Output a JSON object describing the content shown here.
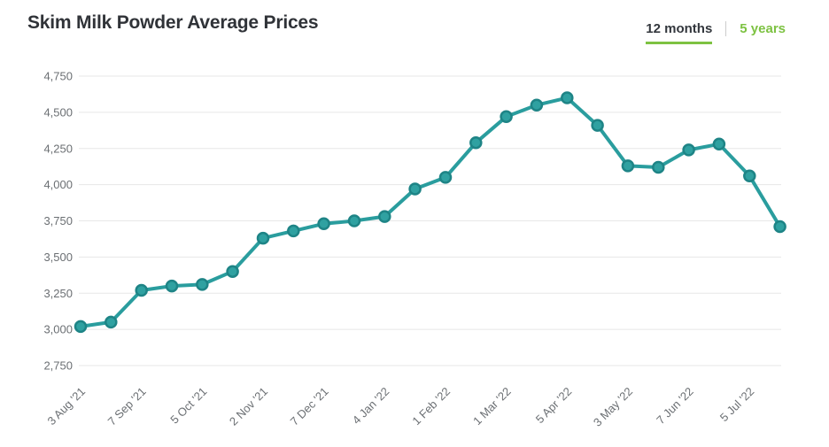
{
  "header": {
    "title": "Skim Milk Powder Average Prices",
    "tabs": [
      {
        "label": "12 months",
        "active": true
      },
      {
        "label": "5 years",
        "active": false
      }
    ]
  },
  "colors": {
    "line": "#2a9d9e",
    "point_fill": "#2fa1a1",
    "point_stroke": "#1e8486",
    "grid": "#e7e7e7",
    "axis_text": "#6b6f73",
    "title_text": "#303338",
    "tab_active_text": "#33373d",
    "tab_accent_green": "#7dc242",
    "tab_divider": "#cccccc",
    "background": "#ffffff"
  },
  "chart_data": {
    "type": "line",
    "title": "Skim Milk Powder Average Prices",
    "x_tick_labels": [
      "3 Aug '21",
      "7 Sep '21",
      "5 Oct '21",
      "2 Nov '21",
      "7 Dec '21",
      "4 Jan '22",
      "1 Feb '22",
      "1 Mar '22",
      "5 Apr '22",
      "3 May '22",
      "7 Jun '22",
      "5 Jul '22"
    ],
    "label_every_n_points": 2,
    "values": [
      3020,
      3050,
      3270,
      3300,
      3310,
      3400,
      3630,
      3680,
      3730,
      3750,
      3780,
      3970,
      4050,
      4290,
      4470,
      4550,
      4600,
      4410,
      4130,
      4120,
      4240,
      4280,
      4060,
      3710
    ],
    "ylim": [
      2750,
      4750
    ],
    "ytick_step": 250,
    "grid": "horizontal",
    "legend": "none",
    "xlabel": "",
    "ylabel": ""
  }
}
